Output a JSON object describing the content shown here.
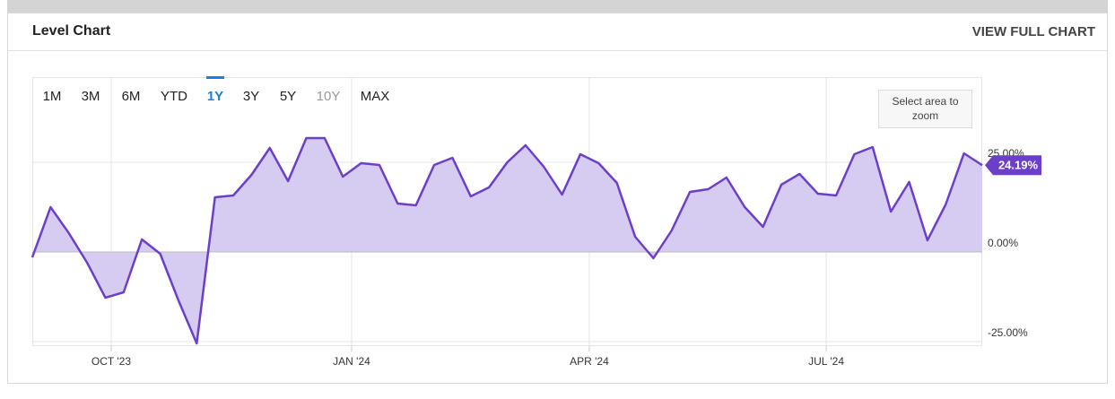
{
  "header": {
    "title": "Level Chart",
    "link": "VIEW FULL CHART"
  },
  "range_buttons": [
    "1M",
    "3M",
    "6M",
    "YTD",
    "1Y",
    "3Y",
    "5Y",
    "10Y",
    "MAX"
  ],
  "selected_range": "1Y",
  "disabled_ranges": [
    "10Y"
  ],
  "zoom_hint": "Select area to zoom",
  "chart_data": {
    "type": "area",
    "x": [
      0,
      1,
      2,
      3,
      4,
      5,
      6,
      7,
      8,
      9,
      10,
      11,
      12,
      13,
      14,
      15,
      16,
      17,
      18,
      19,
      20,
      21,
      22,
      23,
      24,
      25,
      26,
      27,
      28,
      29,
      30,
      31,
      32,
      33,
      34,
      35,
      36,
      37,
      38,
      39,
      40,
      41,
      42,
      43,
      44,
      45,
      46,
      47,
      48,
      49,
      50,
      51,
      52
    ],
    "values": [
      -1.5,
      12.5,
      5.25,
      -3,
      -12.75,
      -11.25,
      3.5,
      -0.5,
      -13.5,
      -25.5,
      15.25,
      15.75,
      21.5,
      29,
      19.75,
      31.75,
      31.75,
      21,
      24.75,
      24.25,
      13.5,
      13,
      24.25,
      26.25,
      15.5,
      18,
      25,
      29.75,
      23.75,
      16,
      27.25,
      24.75,
      19.25,
      4.25,
      -1.75,
      6,
      16.75,
      17.5,
      20.75,
      12.5,
      7,
      18.75,
      21.75,
      16.25,
      15.75,
      27.25,
      29.25,
      11.25,
      19.5,
      3.25,
      13.25,
      27.5,
      24.19
    ],
    "value_labels": [
      null,
      null,
      null,
      null,
      null,
      null,
      null,
      null,
      null,
      null,
      null,
      null,
      null,
      null,
      null,
      null,
      null,
      null,
      null,
      null,
      null,
      null,
      null,
      null,
      null,
      null,
      null,
      null,
      null,
      null,
      null,
      null,
      null,
      null,
      null,
      null,
      null,
      null,
      null,
      null,
      null,
      null,
      null,
      null,
      null,
      null,
      null,
      null,
      null,
      null,
      null,
      null,
      "24.19%"
    ],
    "color": "#6c3fcb",
    "fill_color": "#d6cbf0",
    "xlim": [
      0,
      52
    ],
    "xticks": [
      {
        "value": 4.32,
        "label": "OCT '23"
      },
      {
        "value": 17.48,
        "label": "JAN '24"
      },
      {
        "value": 30.49,
        "label": "APR '24"
      },
      {
        "value": 43.46,
        "label": "JUL '24"
      }
    ],
    "ylim": [
      -26.25,
      48.75
    ],
    "yticks": [
      {
        "value": -25,
        "label": "-25.00%"
      },
      {
        "value": 0,
        "label": "0.00%"
      },
      {
        "value": 25,
        "label": "25.00%"
      }
    ],
    "grid": true
  }
}
